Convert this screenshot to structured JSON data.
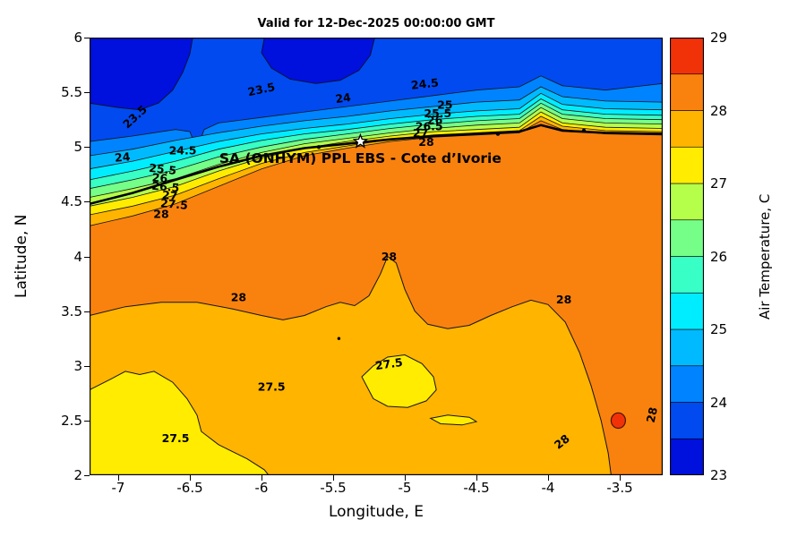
{
  "figure": {
    "background": "#FFFFFF"
  },
  "chart_data": {
    "type": "contour",
    "title": "Valid for 12-Dec-2025 00:00:00 GMT",
    "xlabel": "Longitude, E",
    "ylabel": "Latitude, N",
    "colorbar_label": "Air Temperature, C",
    "x_range": [
      -7.2,
      -3.2
    ],
    "y_range": [
      2,
      6
    ],
    "x_ticks": [
      -7,
      -6.5,
      -6,
      -5.5,
      -5,
      -4.5,
      -4,
      -3.5
    ],
    "y_ticks": [
      2,
      2.5,
      3,
      3.5,
      4,
      4.5,
      5,
      5.5,
      6
    ],
    "contour_interval": 0.5,
    "colorbar": {
      "min": 23,
      "max": 29,
      "ticks": [
        23,
        24,
        25,
        26,
        27,
        28,
        29
      ],
      "band_colors": [
        "#0010DD",
        "#004AF0",
        "#0083FF",
        "#00BAFF",
        "#00EDFF",
        "#38FFC5",
        "#76FF88",
        "#B5FF4A",
        "#FFEC00",
        "#FFB400",
        "#F9820E",
        "#F13208"
      ]
    },
    "annotation": {
      "text": "SA (ONHYM) PPL EBS  - Cote d’Ivorie",
      "lon": -5.31,
      "lat": 4.89,
      "star_lon": -5.31,
      "star_lat": 5.05
    },
    "contour_labels": [
      {
        "t": "23.5",
        "lon": -6.88,
        "lat": 5.27,
        "rot": -42
      },
      {
        "t": "23.5",
        "lon": -6.0,
        "lat": 5.52,
        "rot": -12
      },
      {
        "t": "24",
        "lon": -6.97,
        "lat": 4.9,
        "rot": -5
      },
      {
        "t": "24.5",
        "lon": -6.55,
        "lat": 4.96,
        "rot": 0
      },
      {
        "t": "24",
        "lon": -5.43,
        "lat": 5.44,
        "rot": -8
      },
      {
        "t": "24.5",
        "lon": -4.86,
        "lat": 5.57,
        "rot": -6
      },
      {
        "t": "25",
        "lon": -4.72,
        "lat": 5.38,
        "rot": 0
      },
      {
        "t": "25.5",
        "lon": -6.69,
        "lat": 4.79,
        "rot": 6
      },
      {
        "t": "26",
        "lon": -6.71,
        "lat": 4.71,
        "rot": 5
      },
      {
        "t": "26.5",
        "lon": -6.67,
        "lat": 4.63,
        "rot": 5
      },
      {
        "t": "27",
        "lon": -6.64,
        "lat": 4.55,
        "rot": 5
      },
      {
        "t": "27.5",
        "lon": -6.61,
        "lat": 4.47,
        "rot": 5
      },
      {
        "t": "28",
        "lon": -6.7,
        "lat": 4.38,
        "rot": 0
      },
      {
        "t": "25.5",
        "lon": -4.77,
        "lat": 5.3,
        "rot": 0
      },
      {
        "t": "26",
        "lon": -4.79,
        "lat": 5.24,
        "rot": 0
      },
      {
        "t": "26.5",
        "lon": -4.83,
        "lat": 5.18,
        "rot": 0
      },
      {
        "t": "27",
        "lon": -4.89,
        "lat": 5.12,
        "rot": 0
      },
      {
        "t": "28",
        "lon": -4.85,
        "lat": 5.04,
        "rot": 0
      },
      {
        "t": "28",
        "lon": -6.16,
        "lat": 3.62,
        "rot": 0
      },
      {
        "t": "28",
        "lon": -5.11,
        "lat": 3.99,
        "rot": 0
      },
      {
        "t": "28",
        "lon": -3.89,
        "lat": 3.6,
        "rot": 0
      },
      {
        "t": "27.5",
        "lon": -5.11,
        "lat": 3.01,
        "rot": -8
      },
      {
        "t": "27.5",
        "lon": -5.93,
        "lat": 2.8,
        "rot": 0
      },
      {
        "t": "27.5",
        "lon": -6.6,
        "lat": 2.33,
        "rot": 0
      },
      {
        "t": "28",
        "lon": -3.9,
        "lat": 2.3,
        "rot": -38
      },
      {
        "t": "28",
        "lon": -3.27,
        "lat": 2.55,
        "rot": -78
      }
    ],
    "geometry": {
      "cold_blobs": [
        [
          [
            -7.2,
            5.4
          ],
          [
            -7.0,
            5.36
          ],
          [
            -6.85,
            5.34
          ],
          [
            -6.72,
            5.4
          ],
          [
            -6.62,
            5.52
          ],
          [
            -6.55,
            5.68
          ],
          [
            -6.5,
            5.85
          ],
          [
            -6.48,
            6.0
          ],
          [
            -7.2,
            6.0
          ]
        ],
        [
          [
            -5.98,
            6.0
          ],
          [
            -6.0,
            5.86
          ],
          [
            -5.93,
            5.72
          ],
          [
            -5.8,
            5.62
          ],
          [
            -5.62,
            5.58
          ],
          [
            -5.45,
            5.61
          ],
          [
            -5.32,
            5.7
          ],
          [
            -5.24,
            5.84
          ],
          [
            -5.21,
            6.0
          ]
        ]
      ],
      "band_curves": [
        {
          "level": 24,
          "pts": [
            [
              -7.2,
              5.05
            ],
            [
              -6.9,
              5.1
            ],
            [
              -6.6,
              5.16
            ],
            [
              -6.5,
              5.14
            ],
            [
              -6.45,
              4.98
            ],
            [
              -6.4,
              5.16
            ],
            [
              -6.3,
              5.22
            ],
            [
              -6.0,
              5.27
            ],
            [
              -5.7,
              5.32
            ],
            [
              -5.4,
              5.37
            ],
            [
              -5.1,
              5.42
            ],
            [
              -4.8,
              5.47
            ],
            [
              -4.5,
              5.52
            ],
            [
              -4.2,
              5.55
            ],
            [
              -4.05,
              5.65
            ],
            [
              -3.9,
              5.56
            ],
            [
              -3.6,
              5.52
            ],
            [
              -3.4,
              5.55
            ],
            [
              -3.2,
              5.58
            ]
          ]
        },
        {
          "level": 24.5,
          "pts": [
            [
              -7.2,
              4.92
            ],
            [
              -6.9,
              4.98
            ],
            [
              -6.6,
              5.06
            ],
            [
              -6.3,
              5.13
            ],
            [
              -6.0,
              5.19
            ],
            [
              -5.7,
              5.24
            ],
            [
              -5.4,
              5.28
            ],
            [
              -5.1,
              5.33
            ],
            [
              -4.8,
              5.37
            ],
            [
              -4.5,
              5.41
            ],
            [
              -4.2,
              5.43
            ],
            [
              -4.05,
              5.55
            ],
            [
              -3.9,
              5.46
            ],
            [
              -3.6,
              5.42
            ],
            [
              -3.2,
              5.41
            ]
          ]
        },
        {
          "level": 25,
          "pts": [
            [
              -7.2,
              4.8
            ],
            [
              -6.9,
              4.87
            ],
            [
              -6.6,
              4.96
            ],
            [
              -6.3,
              5.05
            ],
            [
              -6.0,
              5.12
            ],
            [
              -5.7,
              5.17
            ],
            [
              -5.4,
              5.21
            ],
            [
              -5.1,
              5.26
            ],
            [
              -4.8,
              5.3
            ],
            [
              -4.5,
              5.33
            ],
            [
              -4.2,
              5.35
            ],
            [
              -4.05,
              5.49
            ],
            [
              -3.9,
              5.39
            ],
            [
              -3.6,
              5.35
            ],
            [
              -3.2,
              5.34
            ]
          ]
        },
        {
          "level": 25.5,
          "pts": [
            [
              -7.2,
              4.7
            ],
            [
              -6.9,
              4.78
            ],
            [
              -6.6,
              4.87
            ],
            [
              -6.3,
              4.98
            ],
            [
              -6.0,
              5.06
            ],
            [
              -5.7,
              5.12
            ],
            [
              -5.4,
              5.16
            ],
            [
              -5.1,
              5.21
            ],
            [
              -4.8,
              5.25
            ],
            [
              -4.5,
              5.28
            ],
            [
              -4.2,
              5.3
            ],
            [
              -4.05,
              5.44
            ],
            [
              -3.9,
              5.34
            ],
            [
              -3.6,
              5.3
            ],
            [
              -3.2,
              5.29
            ]
          ]
        },
        {
          "level": 26,
          "pts": [
            [
              -7.2,
              4.62
            ],
            [
              -6.9,
              4.7
            ],
            [
              -6.6,
              4.79
            ],
            [
              -6.3,
              4.91
            ],
            [
              -6.0,
              5.0
            ],
            [
              -5.7,
              5.07
            ],
            [
              -5.4,
              5.12
            ],
            [
              -5.1,
              5.17
            ],
            [
              -4.8,
              5.21
            ],
            [
              -4.5,
              5.24
            ],
            [
              -4.2,
              5.26
            ],
            [
              -4.05,
              5.4
            ],
            [
              -3.9,
              5.3
            ],
            [
              -3.6,
              5.26
            ],
            [
              -3.2,
              5.25
            ]
          ]
        },
        {
          "level": 26.5,
          "pts": [
            [
              -7.2,
              4.54
            ],
            [
              -6.9,
              4.62
            ],
            [
              -6.6,
              4.71
            ],
            [
              -6.3,
              4.84
            ],
            [
              -6.0,
              4.95
            ],
            [
              -5.7,
              5.03
            ],
            [
              -5.4,
              5.08
            ],
            [
              -5.1,
              5.13
            ],
            [
              -4.8,
              5.17
            ],
            [
              -4.5,
              5.2
            ],
            [
              -4.2,
              5.22
            ],
            [
              -4.05,
              5.36
            ],
            [
              -3.9,
              5.26
            ],
            [
              -3.6,
              5.22
            ],
            [
              -3.2,
              5.21
            ]
          ]
        },
        {
          "level": 27,
          "pts": [
            [
              -7.2,
              4.46
            ],
            [
              -6.9,
              4.54
            ],
            [
              -6.6,
              4.64
            ],
            [
              -6.3,
              4.78
            ],
            [
              -6.0,
              4.9
            ],
            [
              -5.7,
              4.99
            ],
            [
              -5.4,
              5.05
            ],
            [
              -5.1,
              5.1
            ],
            [
              -4.8,
              5.14
            ],
            [
              -4.5,
              5.16
            ],
            [
              -4.2,
              5.18
            ],
            [
              -4.05,
              5.32
            ],
            [
              -3.9,
              5.22
            ],
            [
              -3.6,
              5.18
            ],
            [
              -3.2,
              5.17
            ]
          ]
        },
        {
          "level": 27.5,
          "pts": [
            [
              -7.2,
              4.38
            ],
            [
              -6.9,
              4.46
            ],
            [
              -6.6,
              4.56
            ],
            [
              -6.3,
              4.71
            ],
            [
              -6.0,
              4.85
            ],
            [
              -5.7,
              4.95
            ],
            [
              -5.4,
              5.01
            ],
            [
              -5.1,
              5.07
            ],
            [
              -4.8,
              5.11
            ],
            [
              -4.5,
              5.13
            ],
            [
              -4.2,
              5.15
            ],
            [
              -4.05,
              5.28
            ],
            [
              -3.9,
              5.19
            ],
            [
              -3.6,
              5.15
            ],
            [
              -3.2,
              5.14
            ]
          ]
        },
        {
          "level": 28,
          "pts": [
            [
              -7.2,
              4.28
            ],
            [
              -6.9,
              4.37
            ],
            [
              -6.6,
              4.48
            ],
            [
              -6.3,
              4.64
            ],
            [
              -6.0,
              4.8
            ],
            [
              -5.7,
              4.92
            ],
            [
              -5.4,
              4.99
            ],
            [
              -5.1,
              5.05
            ],
            [
              -4.8,
              5.09
            ],
            [
              -4.5,
              5.11
            ],
            [
              -4.2,
              5.13
            ],
            [
              -4.05,
              5.24
            ],
            [
              -3.9,
              5.16
            ],
            [
              -3.6,
              5.12
            ],
            [
              -3.2,
              5.11
            ]
          ]
        }
      ],
      "coastline": [
        [
          -7.2,
          4.48
        ],
        [
          -6.9,
          4.58
        ],
        [
          -6.6,
          4.7
        ],
        [
          -6.3,
          4.82
        ],
        [
          -6.0,
          4.92
        ],
        [
          -5.7,
          4.99
        ],
        [
          -5.4,
          5.03
        ],
        [
          -5.1,
          5.07
        ],
        [
          -4.8,
          5.1
        ],
        [
          -4.5,
          5.12
        ],
        [
          -4.2,
          5.14
        ],
        [
          -4.05,
          5.2
        ],
        [
          -3.9,
          5.15
        ],
        [
          -3.6,
          5.13
        ],
        [
          -3.2,
          5.12
        ]
      ],
      "coast_dots": [
        [
          -5.6,
          5.0
        ],
        [
          -4.35,
          5.12
        ],
        [
          -3.75,
          5.15
        ]
      ],
      "inner_28": [
        [
          -7.2,
          3.46
        ],
        [
          -6.95,
          3.54
        ],
        [
          -6.7,
          3.58
        ],
        [
          -6.45,
          3.58
        ],
        [
          -6.2,
          3.52
        ],
        [
          -6.0,
          3.46
        ],
        [
          -5.85,
          3.42
        ],
        [
          -5.7,
          3.46
        ],
        [
          -5.55,
          3.54
        ],
        [
          -5.45,
          3.58
        ],
        [
          -5.35,
          3.55
        ],
        [
          -5.25,
          3.64
        ],
        [
          -5.17,
          3.84
        ],
        [
          -5.12,
          4.0
        ],
        [
          -5.06,
          3.94
        ],
        [
          -5.0,
          3.7
        ],
        [
          -4.93,
          3.5
        ],
        [
          -4.84,
          3.38
        ],
        [
          -4.7,
          3.34
        ],
        [
          -4.55,
          3.37
        ],
        [
          -4.4,
          3.46
        ],
        [
          -4.25,
          3.54
        ],
        [
          -4.12,
          3.6
        ],
        [
          -4.0,
          3.56
        ],
        [
          -3.88,
          3.4
        ],
        [
          -3.78,
          3.12
        ],
        [
          -3.7,
          2.82
        ],
        [
          -3.63,
          2.5
        ],
        [
          -3.58,
          2.2
        ],
        [
          -3.56,
          2.0
        ]
      ],
      "warm_blobs": [
        [
          [
            -7.2,
            2.78
          ],
          [
            -7.05,
            2.88
          ],
          [
            -6.95,
            2.95
          ],
          [
            -6.85,
            2.92
          ],
          [
            -6.75,
            2.95
          ],
          [
            -6.62,
            2.85
          ],
          [
            -6.52,
            2.7
          ],
          [
            -6.45,
            2.55
          ],
          [
            -6.42,
            2.4
          ],
          [
            -6.3,
            2.28
          ],
          [
            -6.1,
            2.15
          ],
          [
            -5.98,
            2.05
          ],
          [
            -5.95,
            2.0
          ],
          [
            -7.2,
            2.0
          ]
        ],
        [
          [
            -5.3,
            2.9
          ],
          [
            -5.22,
            3.0
          ],
          [
            -5.12,
            3.08
          ],
          [
            -5.0,
            3.1
          ],
          [
            -4.88,
            3.02
          ],
          [
            -4.8,
            2.9
          ],
          [
            -4.78,
            2.78
          ],
          [
            -4.85,
            2.68
          ],
          [
            -4.98,
            2.62
          ],
          [
            -5.12,
            2.63
          ],
          [
            -5.22,
            2.7
          ]
        ],
        [
          [
            -4.82,
            2.52
          ],
          [
            -4.7,
            2.55
          ],
          [
            -4.55,
            2.53
          ],
          [
            -4.5,
            2.49
          ],
          [
            -4.6,
            2.46
          ],
          [
            -4.75,
            2.47
          ]
        ]
      ],
      "hot_spot": {
        "lon": -3.51,
        "lat": 2.5,
        "rx": 0.05,
        "ry": 0.07,
        "level": 28.5
      },
      "dot": {
        "lon": -5.46,
        "lat": 3.25
      }
    }
  }
}
